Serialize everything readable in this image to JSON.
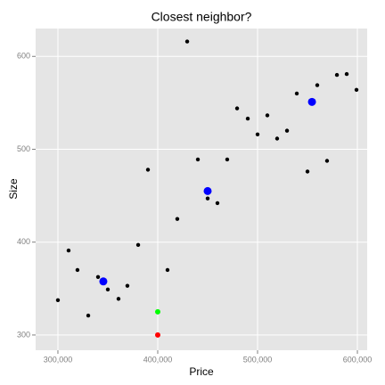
{
  "chart_data": {
    "type": "scatter",
    "title": "Closest neighbor?",
    "x_label": "Price",
    "y_label": "Size",
    "xlim": [
      277700,
      609800
    ],
    "ylim": [
      283.6,
      630
    ],
    "xticks": [
      {
        "value": 300000,
        "label": "300,000"
      },
      {
        "value": 400000,
        "label": "400,000"
      },
      {
        "value": 500000,
        "label": "500,000"
      },
      {
        "value": 600000,
        "label": "600,000"
      }
    ],
    "yticks": [
      300,
      400,
      500,
      600
    ],
    "grid": true,
    "series": [
      {
        "color": "#000000",
        "x": [
          300000,
          310700,
          319600,
          330400,
          340200,
          350000,
          360700,
          369600,
          380400,
          390200,
          409800,
          419600,
          429500,
          440200,
          450000,
          459800,
          469600,
          479500,
          490200,
          500000,
          509800,
          519600,
          529500,
          539300,
          550000,
          559800,
          569600,
          579500,
          589300,
          599100
        ],
        "values": [
          337.5,
          391,
          370,
          321,
          362.5,
          349,
          339,
          353,
          397,
          478,
          370,
          425,
          616,
          489,
          447,
          442,
          489,
          544,
          533,
          516,
          536.5,
          511.5,
          520,
          560,
          476,
          569,
          487.5,
          580,
          581,
          564
        ]
      },
      {
        "color": "#0000ff",
        "x": [
          345500,
          450000,
          554500
        ],
        "values": [
          357.7,
          455,
          551
        ]
      },
      {
        "color": "#00ff00",
        "x": [
          400000
        ],
        "values": [
          325
        ]
      },
      {
        "color": "#ff0000",
        "x": [
          400000
        ],
        "values": [
          300
        ]
      }
    ]
  }
}
